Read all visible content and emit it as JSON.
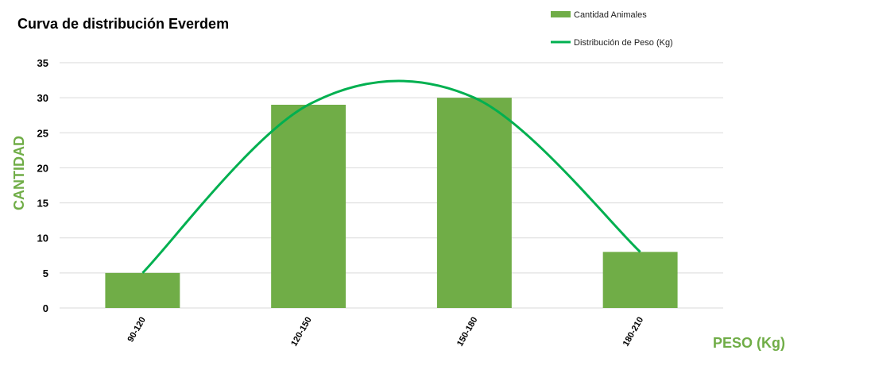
{
  "chart_data": {
    "type": "bar",
    "title": "Curva de distribución Everdem",
    "xlabel": "PESO (Kg)",
    "ylabel": "CANTIDAD",
    "categories": [
      "90-120",
      "120-150",
      "150-180",
      "180-210"
    ],
    "series": [
      {
        "name": "Cantidad Animales",
        "type": "bar",
        "values": [
          5,
          29,
          30,
          8
        ],
        "color": "#70ad47"
      },
      {
        "name": "Distribución de Peso (Kg)",
        "type": "line",
        "smooth": true,
        "values": [
          5,
          29,
          30,
          8
        ],
        "color": "#00b050"
      }
    ],
    "ylim": [
      0,
      35
    ],
    "yticks": [
      0,
      5,
      10,
      15,
      20,
      25,
      30,
      35
    ],
    "grid": true,
    "legend_position": "top-right",
    "axis_label_color": "#70ad47"
  }
}
